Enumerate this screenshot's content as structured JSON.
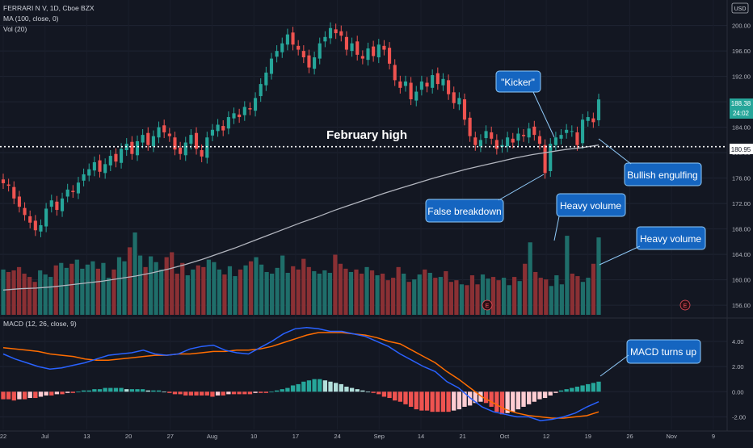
{
  "legend": {
    "symbol": "FERRARI N V, 1D, Cboe BZX",
    "ma": "MA (100, close, 0)",
    "vol": "Vol (20)",
    "macd": "MACD (12, 26, close, 9)"
  },
  "currency": "USD",
  "last_price": "188.38",
  "countdown": "24:02",
  "level_label": "180.95",
  "earnings_marker": "E",
  "colors": {
    "background": "#131722",
    "up": "#26a69a",
    "down": "#ef5350",
    "ma": "#b2b5be",
    "macd_line": "#2962ff",
    "signal_line": "#ff6d00",
    "callout_fill": "#1565c0",
    "callout_border": "#90caf9"
  },
  "annotations": [
    "February high",
    "\"Kicker\"",
    "Bullish engulfing",
    "False breakdown",
    "Heavy volume",
    "Heavy volume",
    "MACD turns up"
  ],
  "chart_data": [
    {
      "type": "candlestick",
      "name": "price",
      "x_ticks": [
        "22",
        "Jul",
        "13",
        "20",
        "27",
        "Aug",
        "10",
        "17",
        "24",
        "Sep",
        "14",
        "21",
        "Oct",
        "12",
        "19",
        "26",
        "Nov",
        "9"
      ],
      "y_ticks": [
        156.0,
        160.0,
        164.0,
        168.0,
        172.0,
        176.0,
        180.0,
        184.0,
        188.0,
        192.0,
        196.0,
        200.0
      ],
      "ylim": [
        154.5,
        203
      ],
      "horizontal_level": 180.95,
      "close": [
        175.2,
        174.8,
        172.8,
        171.5,
        170.2,
        169.0,
        167.8,
        168.6,
        171.2,
        172.5,
        171.0,
        172.8,
        174.2,
        173.8,
        175.3,
        176.6,
        177.4,
        178.5,
        177.0,
        178.2,
        179.5,
        178.6,
        180.6,
        181.4,
        179.8,
        181.8,
        182.8,
        181.2,
        182.6,
        184.0,
        183.2,
        182.6,
        180.5,
        179.8,
        181.6,
        182.8,
        180.6,
        179.4,
        182.4,
        183.6,
        184.4,
        183.5,
        185.6,
        186.2,
        185.6,
        187.2,
        186.8,
        188.6,
        190.8,
        192.6,
        194.8,
        196.0,
        197.2,
        198.6,
        197.0,
        196.2,
        195.0,
        193.4,
        195.0,
        197.2,
        198.2,
        199.6,
        198.8,
        198.4,
        196.2,
        197.2,
        195.4,
        194.8,
        196.4,
        195.2,
        197.0,
        196.2,
        194.0,
        191.4,
        190.2,
        191.2,
        188.4,
        189.6,
        191.2,
        190.4,
        192.2,
        190.8,
        191.6,
        189.2,
        187.8,
        188.6,
        185.2,
        182.6,
        181.2,
        182.0,
        183.4,
        182.2,
        180.6,
        181.2,
        182.4,
        181.6,
        183.0,
        182.6,
        183.8,
        182.8,
        181.4,
        176.8,
        181.4,
        182.4,
        182.8,
        183.6,
        183.4,
        181.2,
        185.2,
        185.6,
        184.8,
        188.38
      ],
      "annotations": [
        {
          "text": "February high"
        },
        {
          "text": "\"Kicker\""
        },
        {
          "text": "Bullish engulfing"
        },
        {
          "text": "False breakdown"
        }
      ]
    },
    {
      "type": "line",
      "name": "MA (100, close, 0)",
      "values": [
        158.4,
        158.6,
        158.7,
        158.9,
        159.2,
        159.5,
        159.8,
        160.2,
        160.6,
        161.1,
        161.7,
        162.4,
        163.2,
        164.1,
        165.0,
        166.0,
        167.0,
        168.0,
        169.0,
        169.9,
        170.9,
        171.8,
        172.7,
        173.6,
        174.4,
        175.2,
        176.0,
        176.7,
        177.4,
        178.0,
        178.6,
        179.2,
        179.7,
        180.1,
        180.5,
        180.8,
        181.2
      ]
    },
    {
      "type": "bar",
      "name": "Vol (20)",
      "colors": "up/down by candle",
      "values": [
        55,
        52,
        54,
        58,
        50,
        46,
        40,
        54,
        49,
        46,
        60,
        63,
        57,
        62,
        67,
        56,
        61,
        65,
        56,
        63,
        45,
        55,
        70,
        65,
        82,
        100,
        72,
        58,
        71,
        64,
        55,
        70,
        76,
        50,
        63,
        48,
        55,
        60,
        58,
        67,
        64,
        55,
        49,
        59,
        47,
        55,
        60,
        65,
        70,
        61,
        52,
        50,
        57,
        72,
        51,
        59,
        55,
        68,
        58,
        53,
        50,
        54,
        51,
        73,
        62,
        56,
        52,
        55,
        50,
        58,
        54,
        48,
        50,
        42,
        45,
        58,
        50,
        40,
        43,
        49,
        55,
        51,
        45,
        46,
        53,
        40,
        42,
        37,
        36,
        48,
        37,
        49,
        44,
        46,
        42,
        45,
        36,
        46,
        41,
        62,
        88,
        52,
        45,
        43,
        35,
        48,
        37,
        96,
        50,
        47,
        40,
        45,
        62,
        94
      ]
    },
    {
      "type": "line",
      "name": "MACD",
      "y_ticks": [
        4.0,
        2.0,
        0.0,
        -2.0
      ],
      "ylim": [
        -3.0,
        5.6
      ],
      "macd": [
        3.0,
        2.6,
        2.3,
        2.0,
        1.8,
        1.9,
        2.1,
        2.3,
        2.6,
        2.9,
        3.0,
        3.1,
        3.3,
        3.0,
        2.9,
        3.0,
        3.4,
        3.6,
        3.7,
        3.3,
        3.1,
        3.0,
        3.5,
        4.0,
        4.6,
        5.0,
        5.1,
        5.0,
        4.8,
        4.8,
        4.6,
        4.4,
        4.0,
        3.6,
        3.0,
        2.5,
        2.0,
        1.6,
        0.8,
        0.3,
        -0.5,
        -1.2,
        -1.6,
        -1.8,
        -2.0,
        -2.0,
        -2.3,
        -2.2,
        -2.0,
        -1.7,
        -1.2,
        -0.8
      ],
      "signal": [
        3.5,
        3.4,
        3.3,
        3.2,
        3.0,
        2.9,
        2.8,
        2.6,
        2.5,
        2.5,
        2.6,
        2.7,
        2.8,
        2.9,
        2.9,
        3.0,
        3.0,
        3.1,
        3.2,
        3.2,
        3.3,
        3.3,
        3.4,
        3.6,
        3.9,
        4.2,
        4.5,
        4.7,
        4.7,
        4.7,
        4.6,
        4.5,
        4.3,
        4.0,
        3.8,
        3.3,
        2.8,
        2.3,
        1.6,
        1.0,
        0.3,
        -0.4,
        -0.9,
        -1.4,
        -1.7,
        -1.9,
        -2.0,
        -2.1,
        -2.1,
        -2.0,
        -1.9,
        -1.6
      ]
    },
    {
      "type": "bar",
      "name": "MACD histogram",
      "values": [
        -0.6,
        -0.6,
        -0.7,
        -0.6,
        -0.6,
        -0.5,
        -0.5,
        -0.4,
        -0.3,
        -0.3,
        -0.2,
        -0.2,
        -0.1,
        -0.1,
        0.0,
        0.1,
        0.1,
        0.2,
        0.2,
        0.3,
        0.3,
        0.3,
        0.3,
        0.2,
        0.2,
        0.2,
        0.2,
        0.1,
        0.1,
        0.1,
        0.0,
        -0.1,
        -0.2,
        -0.2,
        -0.3,
        -0.3,
        -0.3,
        -0.3,
        -0.3,
        -0.4,
        -0.3,
        -0.3,
        -0.2,
        -0.2,
        -0.2,
        -0.2,
        -0.2,
        -0.1,
        -0.1,
        -0.1,
        0.0,
        0.1,
        0.2,
        0.3,
        0.5,
        0.6,
        0.8,
        0.9,
        1.0,
        1.0,
        0.9,
        0.8,
        0.7,
        0.6,
        0.4,
        0.3,
        0.2,
        0.1,
        0.0,
        -0.1,
        -0.2,
        -0.4,
        -0.5,
        -0.7,
        -0.8,
        -1.0,
        -1.2,
        -1.4,
        -1.5,
        -1.5,
        -1.6,
        -1.6,
        -1.6,
        -1.6,
        -1.5,
        -1.4,
        -1.2,
        -1.1,
        -0.9,
        -0.8,
        -0.9,
        -1.2,
        -1.6,
        -1.8,
        -1.7,
        -1.6,
        -1.4,
        -1.2,
        -1.0,
        -0.8,
        -0.6,
        -0.5,
        -0.3,
        -0.1,
        0.1,
        0.2,
        0.3,
        0.4,
        0.5,
        0.6,
        0.7,
        0.8
      ],
      "annotations": [
        {
          "text": "MACD turns up"
        }
      ]
    }
  ]
}
